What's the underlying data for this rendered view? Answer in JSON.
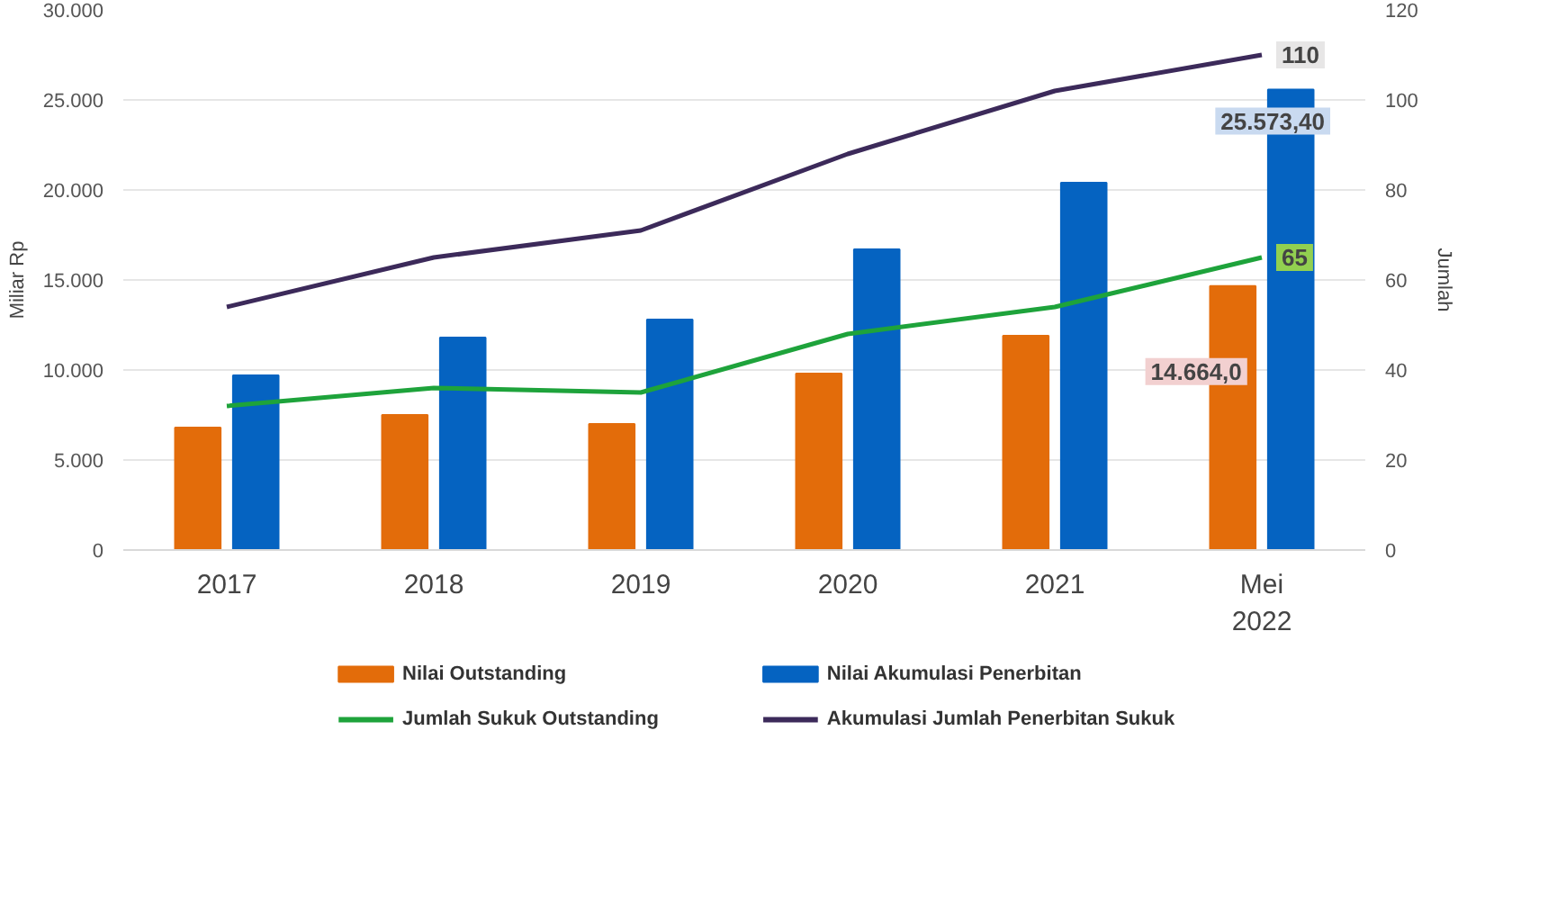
{
  "chart_data": {
    "type": "bar",
    "categories": [
      "2017",
      "2018",
      "2019",
      "2020",
      "2021",
      "Mei\n2022"
    ],
    "ylabel": "Miliar Rp",
    "y2label": "Jumlah",
    "ylim": [
      0,
      30000
    ],
    "yticks": [
      {
        "value": 0,
        "label": "0"
      },
      {
        "value": 5000,
        "label": "5.000"
      },
      {
        "value": 10000,
        "label": "10.000"
      },
      {
        "value": 15000,
        "label": "15.000"
      },
      {
        "value": 20000,
        "label": "20.000"
      },
      {
        "value": 25000,
        "label": "25.000"
      },
      {
        "value": 30000,
        "label": "30.000"
      }
    ],
    "y2lim": [
      0,
      120
    ],
    "y2ticks": [
      0,
      20,
      40,
      60,
      80,
      100,
      120
    ],
    "grid": "y",
    "legend": "bottom",
    "series": [
      {
        "name": "Nilai Outstanding",
        "color": "#e36c0a",
        "values": [
          6800,
          7500,
          7000,
          9800,
          11900,
          14664.0
        ],
        "value_labels": [
          null,
          null,
          null,
          null,
          null,
          "14.664,0"
        ]
      },
      {
        "name": "Nilai Akumulasi Penerbitan",
        "color": "#0563c1",
        "values": [
          9700,
          11800,
          12800,
          16700,
          20400,
          25573.4
        ],
        "value_labels": [
          null,
          null,
          null,
          null,
          null,
          "25.573,40"
        ]
      },
      {
        "name": "Jumlah Sukuk Outstanding",
        "type": "line",
        "axis": "y2",
        "color": "#1ea33b",
        "values": [
          32,
          36,
          35,
          48,
          54,
          65
        ],
        "value_labels": [
          null,
          null,
          null,
          null,
          null,
          "65"
        ]
      },
      {
        "name": "Akumulasi Jumlah Penerbitan Sukuk",
        "type": "line",
        "axis": "y2",
        "color": "#3c2a5a",
        "values": [
          54,
          65,
          71,
          88,
          102,
          110
        ],
        "value_labels": [
          null,
          null,
          null,
          null,
          null,
          "110"
        ]
      }
    ]
  }
}
